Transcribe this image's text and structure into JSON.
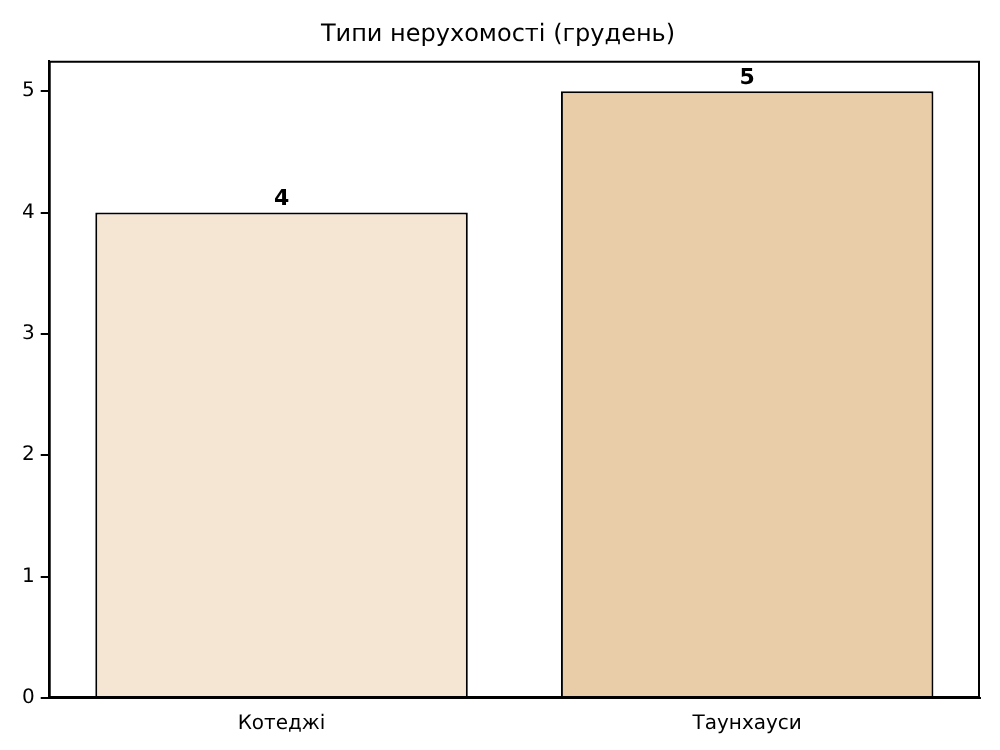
{
  "chart_data": {
    "type": "bar",
    "title": "Типи нерухомості (грудень)",
    "categories": [
      "Котеджі",
      "Таунхауси"
    ],
    "values": [
      4,
      5
    ],
    "colors": [
      "#f5e6d3",
      "#e8cda8"
    ],
    "ylim": [
      0,
      5.25
    ],
    "yticks": [
      0,
      1,
      2,
      3,
      4,
      5
    ],
    "grid": false,
    "legend": false,
    "data_labels": true
  }
}
